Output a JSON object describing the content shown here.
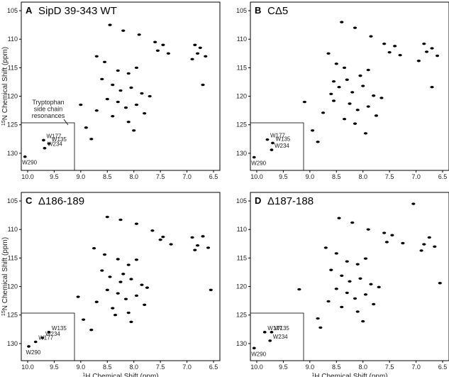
{
  "chart_data": [
    {
      "type": "scatter",
      "panel_label": "A",
      "title": "SipD 39-343 WT",
      "ylabel_sup": "15",
      "ylabel": "N Chemical Shift (ppm)",
      "annotation": [
        "Tryptophan",
        "side chain",
        "resonances"
      ],
      "xlim": [
        10.12,
        6.38
      ],
      "ylim": [
        133,
        103.5
      ],
      "xticks": [
        {
          "value": 10,
          "label": "10.0"
        },
        9.5,
        {
          "value": 9,
          "label": "9.0"
        },
        8.5,
        {
          "value": 8,
          "label": "8.0"
        },
        7.5,
        {
          "value": 7,
          "label": "7.0"
        },
        6.5
      ],
      "yticks": [
        105,
        110,
        115,
        120,
        125,
        130
      ],
      "color": "#000000",
      "series": [
        {
          "x": [
            8.45,
            8.2,
            7.9,
            7.6,
            7.55,
            7.45,
            7.35,
            6.85,
            6.8,
            6.75,
            6.65,
            6.9,
            8.7,
            8.55,
            8.3,
            8.1,
            7.95,
            8.6,
            8.4,
            8.25,
            8.05,
            7.85,
            8.5,
            8.3,
            8.15,
            7.95,
            7.7,
            8.7,
            8.4,
            8.1,
            8.9,
            7.8,
            9.0,
            8.8,
            8.0,
            6.7
          ],
          "values": [
            107.5,
            108.5,
            109.2,
            110.5,
            112.0,
            111.0,
            112.5,
            111.0,
            112.5,
            111.5,
            113.0,
            113.5,
            113.0,
            114.0,
            115.5,
            116.0,
            115.0,
            117.0,
            118.0,
            119.0,
            118.5,
            119.5,
            120.5,
            121.0,
            122.0,
            121.5,
            120.0,
            122.5,
            123.5,
            124.5,
            125.5,
            123.0,
            121.5,
            127.5,
            126.0,
            118.0
          ]
        }
      ],
      "tryptophan": {
        "labels": [
          "W177",
          "W135",
          "W234",
          "W290"
        ],
        "x": [
          9.7,
          9.6,
          9.68,
          10.05
        ],
        "values": [
          127.7,
          128.3,
          129.1,
          130.6
        ]
      }
    },
    {
      "type": "scatter",
      "panel_label": "B",
      "title": "CΔ5",
      "xlim": [
        10.12,
        6.38
      ],
      "ylim": [
        133,
        103.5
      ],
      "xticks": [
        {
          "value": 10,
          "label": "10.0"
        },
        9.5,
        {
          "value": 9,
          "label": "9.0"
        },
        8.5,
        {
          "value": 8,
          "label": "8.0"
        },
        7.5,
        {
          "value": 7,
          "label": "7.0"
        },
        6.5
      ],
      "yticks": [
        105,
        110,
        115,
        120,
        125,
        130
      ],
      "color": "#000000",
      "series": [
        {
          "x": [
            8.4,
            8.15,
            7.85,
            7.6,
            7.5,
            7.4,
            7.3,
            6.85,
            6.8,
            6.7,
            6.6,
            6.95,
            8.65,
            8.5,
            8.35,
            8.05,
            7.9,
            8.55,
            8.45,
            8.2,
            8.0,
            7.8,
            8.55,
            8.25,
            8.1,
            7.9,
            7.65,
            8.75,
            8.35,
            8.15,
            8.95,
            7.75,
            9.1,
            8.85,
            7.95,
            6.7,
            8.6,
            8.3
          ],
          "values": [
            107.0,
            108.0,
            109.5,
            110.8,
            112.3,
            111.2,
            112.8,
            110.8,
            112.2,
            111.6,
            112.9,
            113.8,
            112.5,
            114.3,
            115.0,
            116.4,
            115.4,
            117.4,
            118.4,
            119.3,
            118.2,
            119.9,
            120.8,
            121.3,
            122.4,
            121.8,
            120.3,
            122.9,
            124.0,
            124.8,
            126.0,
            123.4,
            121.0,
            128.0,
            126.5,
            118.4,
            119.6,
            117.1
          ]
        }
      ],
      "tryptophan": {
        "labels": [
          "W177",
          "W135",
          "W234",
          "W290"
        ],
        "x": [
          9.8,
          9.7,
          9.72,
          10.05
        ],
        "values": [
          127.6,
          128.2,
          129.4,
          130.7
        ]
      }
    },
    {
      "type": "scatter",
      "panel_label": "C",
      "title": "Δ186-189",
      "ylabel_sup": "15",
      "ylabel": "N Chemical Shift (ppm)",
      "xlabel_sup": "1",
      "xlabel": "H Chemical Shift (ppm)",
      "xlim": [
        10.12,
        6.38
      ],
      "ylim": [
        133,
        103.5
      ],
      "xticks": [
        {
          "value": 10,
          "label": "10.0"
        },
        9.5,
        {
          "value": 9,
          "label": "9.0"
        },
        8.5,
        {
          "value": 8,
          "label": "8.0"
        },
        7.5,
        {
          "value": 7,
          "label": "7.0"
        },
        6.5
      ],
      "yticks": [
        105,
        110,
        115,
        120,
        125,
        130
      ],
      "color": "#000000",
      "series": [
        {
          "x": [
            8.5,
            8.25,
            7.95,
            7.65,
            7.5,
            7.45,
            7.3,
            6.9,
            6.8,
            6.7,
            6.6,
            6.85,
            8.75,
            8.55,
            8.3,
            8.1,
            7.95,
            8.6,
            8.45,
            8.25,
            8.05,
            7.85,
            8.5,
            8.3,
            8.15,
            7.95,
            7.75,
            8.7,
            8.4,
            8.1,
            8.95,
            7.8,
            9.05,
            8.8,
            8.05,
            6.55,
            8.35,
            8.2
          ],
          "values": [
            107.8,
            108.3,
            109.0,
            110.2,
            111.8,
            111.3,
            112.6,
            111.4,
            112.8,
            111.2,
            113.2,
            113.6,
            113.3,
            114.4,
            115.2,
            116.2,
            115.3,
            117.2,
            118.3,
            119.2,
            118.7,
            119.7,
            120.6,
            121.2,
            122.2,
            121.6,
            120.2,
            122.7,
            123.8,
            124.6,
            125.8,
            123.2,
            121.8,
            127.6,
            126.2,
            120.6,
            125.0,
            117.8
          ]
        }
      ],
      "tryptophan": {
        "labels": [
          "W135",
          "W234",
          "W177",
          "W290"
        ],
        "x": [
          9.6,
          9.72,
          9.85,
          9.98
        ],
        "values": [
          128.0,
          129.0,
          129.7,
          130.5
        ]
      }
    },
    {
      "type": "scatter",
      "panel_label": "D",
      "title": "Δ187-188",
      "xlabel_sup": "1",
      "xlabel": "H Chemical Shift (ppm)",
      "xlim": [
        10.12,
        6.38
      ],
      "ylim": [
        133,
        103.5
      ],
      "xticks": [
        {
          "value": 10,
          "label": "10.0"
        },
        9.5,
        {
          "value": 9,
          "label": "9.0"
        },
        8.5,
        {
          "value": 8,
          "label": "8.0"
        },
        7.5,
        {
          "value": 7,
          "label": "7.0"
        },
        6.5
      ],
      "yticks": [
        105,
        110,
        115,
        120,
        125,
        130
      ],
      "color": "#000000",
      "series": [
        {
          "x": [
            8.45,
            8.2,
            7.9,
            7.6,
            7.55,
            7.45,
            7.25,
            7.05,
            6.85,
            6.75,
            6.65,
            6.9,
            8.7,
            8.5,
            8.3,
            8.1,
            7.95,
            8.6,
            8.4,
            8.25,
            8.05,
            7.85,
            8.5,
            8.3,
            8.15,
            7.95,
            7.7,
            8.65,
            8.4,
            8.1,
            8.85,
            7.8,
            9.2,
            8.8,
            8.0,
            6.55
          ],
          "values": [
            108.0,
            108.8,
            110.0,
            110.6,
            112.2,
            111.0,
            112.4,
            105.5,
            112.6,
            111.4,
            113.0,
            113.7,
            113.2,
            114.2,
            115.6,
            116.1,
            115.1,
            117.1,
            118.1,
            119.1,
            118.6,
            119.6,
            120.4,
            121.1,
            122.1,
            121.4,
            120.1,
            122.6,
            123.6,
            124.4,
            125.6,
            123.1,
            120.5,
            127.2,
            126.1,
            119.4
          ]
        }
      ],
      "tryptophan": {
        "labels": [
          "W177",
          "W135",
          "W234",
          "W290"
        ],
        "x": [
          9.85,
          9.72,
          9.75,
          10.05
        ],
        "values": [
          128.0,
          128.0,
          129.5,
          130.8
        ]
      }
    }
  ]
}
